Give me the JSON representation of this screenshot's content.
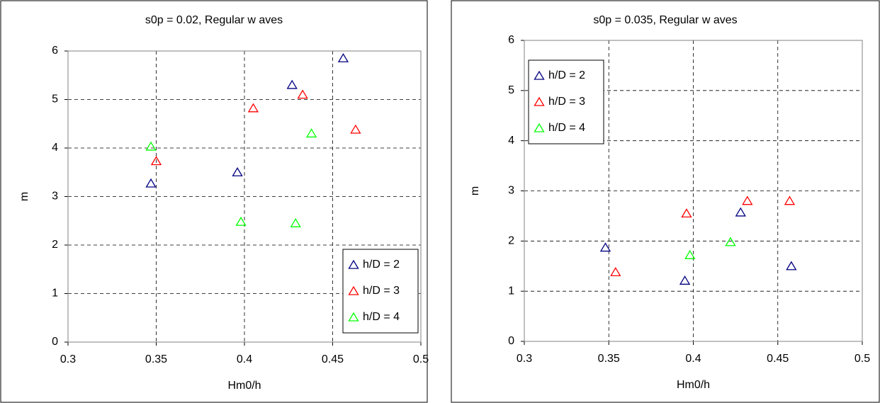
{
  "chart_data": [
    {
      "type": "scatter",
      "title": "s0p = 0.02, Regular w aves",
      "x_label": "Hm0/h",
      "y_label": "m",
      "xlim": [
        0.3,
        0.5
      ],
      "xticks": [
        0.3,
        0.35,
        0.4,
        0.45,
        0.5
      ],
      "ylim": [
        0,
        6
      ],
      "yticks": [
        0,
        1,
        2,
        3,
        4,
        5,
        6
      ],
      "grid": true,
      "legend": "lower right",
      "series": [
        {
          "name": "h/D = 2",
          "color": "#000080",
          "x": [
            0.347,
            0.396,
            0.427,
            0.456
          ],
          "values": [
            3.27,
            3.5,
            5.3,
            5.85
          ]
        },
        {
          "name": "h/D = 3",
          "color": "#ff0000",
          "x": [
            0.35,
            0.405,
            0.433,
            0.463
          ],
          "values": [
            3.73,
            4.82,
            5.1,
            4.38
          ]
        },
        {
          "name": "h/D = 4",
          "color": "#00ff00",
          "x": [
            0.347,
            0.398,
            0.429,
            0.438
          ],
          "values": [
            4.03,
            2.48,
            2.45,
            4.3
          ]
        }
      ]
    },
    {
      "type": "scatter",
      "title": "s0p = 0.035, Regular w aves",
      "x_label": "Hm0/h",
      "y_label": "m",
      "xlim": [
        0.3,
        0.5
      ],
      "xticks": [
        0.3,
        0.35,
        0.4,
        0.45,
        0.5
      ],
      "ylim": [
        0,
        6
      ],
      "yticks": [
        0,
        1,
        2,
        3,
        4,
        5,
        6
      ],
      "grid": true,
      "legend": "upper left",
      "series": [
        {
          "name": "h/D = 2",
          "color": "#000080",
          "x": [
            0.348,
            0.395,
            0.428,
            0.458
          ],
          "values": [
            1.87,
            1.21,
            2.57,
            1.5
          ]
        },
        {
          "name": "h/D = 3",
          "color": "#ff0000",
          "x": [
            0.354,
            0.396,
            0.432,
            0.457
          ],
          "values": [
            1.38,
            2.55,
            2.8,
            2.8
          ]
        },
        {
          "name": "h/D = 4",
          "color": "#00ff00",
          "x": [
            0.398,
            0.422
          ],
          "values": [
            1.72,
            1.98
          ]
        }
      ]
    }
  ]
}
